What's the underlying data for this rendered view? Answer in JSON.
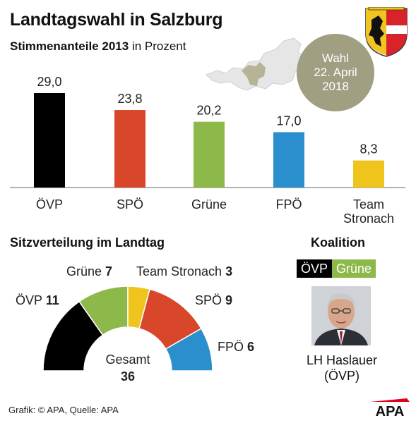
{
  "header": {
    "title": "Landtagswahl in Salzburg",
    "subtitle_bold": "Stimmenanteile 2013",
    "subtitle_rest": " in Prozent"
  },
  "badge": {
    "line1": "Wahl",
    "line2": "22. April",
    "line3": "2018"
  },
  "chart_data": [
    {
      "type": "bar",
      "title": "Stimmenanteile 2013 in Prozent",
      "categories": [
        "ÖVP",
        "SPÖ",
        "Grüne",
        "FPÖ",
        "Team Stronach"
      ],
      "category_lines": [
        [
          "ÖVP"
        ],
        [
          "SPÖ"
        ],
        [
          "Grüne"
        ],
        [
          "FPÖ"
        ],
        [
          "Team",
          "Stronach"
        ]
      ],
      "values": [
        29.0,
        23.8,
        20.2,
        17.0,
        8.3
      ],
      "value_labels": [
        "29,0",
        "23,8",
        "20,2",
        "17,0",
        "8,3"
      ],
      "colors": [
        "#000000",
        "#d9472b",
        "#8db84a",
        "#2b8fcd",
        "#efc41c"
      ],
      "ylim": [
        0,
        29.0
      ],
      "grid": false
    },
    {
      "type": "pie",
      "subtype": "half-donut",
      "title": "Sitzverteilung im Landtag",
      "categories": [
        "ÖVP",
        "Grüne",
        "Team Stronach",
        "SPÖ",
        "FPÖ"
      ],
      "values": [
        11,
        7,
        3,
        9,
        6
      ],
      "colors": [
        "#000000",
        "#8db84a",
        "#efc41c",
        "#d9472b",
        "#2b8fcd"
      ],
      "total_label": "Gesamt",
      "total_value": "36"
    }
  ],
  "coalition": {
    "title": "Koalition",
    "party_a": "ÖVP",
    "party_b": "Grüne",
    "person_name": "LH Haslauer",
    "person_party": "(ÖVP)"
  },
  "footer": {
    "credit": "Grafik: © APA, Quelle: APA",
    "logo": "APA"
  },
  "icons": {
    "map": "austria-map-icon",
    "coat": "salzburg-coat-of-arms-icon",
    "portrait": "politician-portrait"
  }
}
